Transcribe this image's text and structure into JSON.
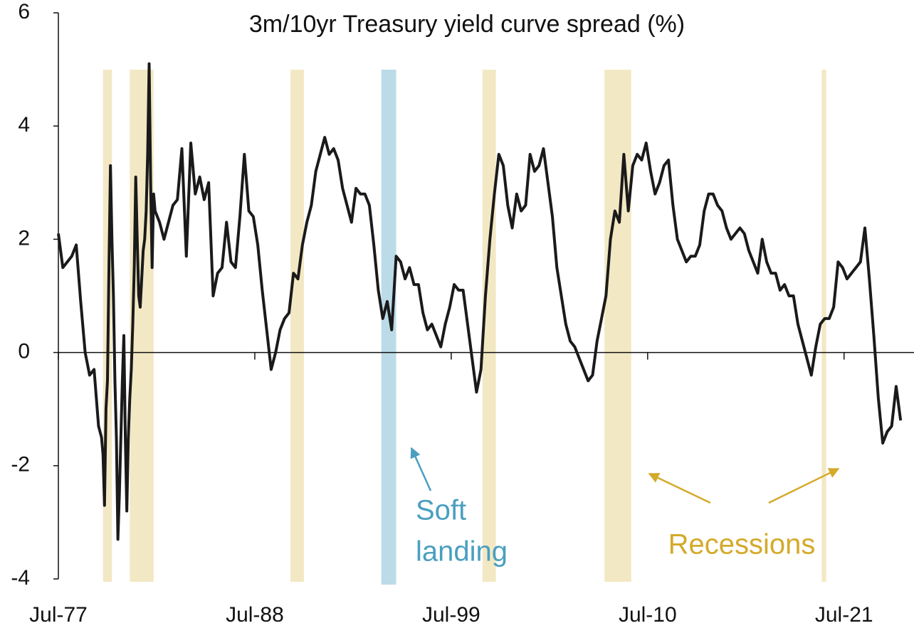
{
  "chart_data": {
    "type": "line",
    "title": "3m/10yr Treasury yield curve spread (%)",
    "x": [
      "1977-07",
      "1977-10",
      "1978-01",
      "1978-04",
      "1978-07",
      "1978-10",
      "1979-01",
      "1979-04",
      "1979-07",
      "1979-10",
      "1979-12",
      "1980-01",
      "1980-02",
      "1980-03",
      "1980-04",
      "1980-05",
      "1980-06",
      "1980-07",
      "1980-08",
      "1980-09",
      "1980-10",
      "1980-11",
      "1980-12",
      "1981-01",
      "1981-02",
      "1981-03",
      "1981-04",
      "1981-05",
      "1981-06",
      "1981-07",
      "1981-08",
      "1981-09",
      "1981-10",
      "1981-11",
      "1981-12",
      "1982-01",
      "1982-02",
      "1982-03",
      "1982-04",
      "1982-05",
      "1982-06",
      "1982-07",
      "1982-08",
      "1982-09",
      "1982-10",
      "1982-11",
      "1982-12",
      "1983-03",
      "1983-06",
      "1983-09",
      "1983-12",
      "1984-03",
      "1984-06",
      "1984-09",
      "1984-12",
      "1985-03",
      "1985-06",
      "1985-09",
      "1985-12",
      "1986-03",
      "1986-06",
      "1986-09",
      "1986-12",
      "1987-03",
      "1987-06",
      "1987-09",
      "1987-12",
      "1988-03",
      "1988-06",
      "1988-09",
      "1988-12",
      "1989-03",
      "1989-06",
      "1989-09",
      "1989-12",
      "1990-03",
      "1990-06",
      "1990-09",
      "1990-12",
      "1991-03",
      "1991-06",
      "1991-09",
      "1991-12",
      "1992-03",
      "1992-06",
      "1992-09",
      "1992-12",
      "1993-03",
      "1993-06",
      "1993-09",
      "1993-12",
      "1994-03",
      "1994-06",
      "1994-09",
      "1994-12",
      "1995-03",
      "1995-06",
      "1995-09",
      "1995-12",
      "1996-03",
      "1996-06",
      "1996-09",
      "1996-12",
      "1997-03",
      "1997-06",
      "1997-09",
      "1997-12",
      "1998-03",
      "1998-06",
      "1998-09",
      "1998-12",
      "1999-03",
      "1999-06",
      "1999-09",
      "1999-12",
      "2000-03",
      "2000-06",
      "2000-09",
      "2000-12",
      "2001-03",
      "2001-06",
      "2001-09",
      "2001-12",
      "2002-03",
      "2002-06",
      "2002-09",
      "2002-12",
      "2003-03",
      "2003-06",
      "2003-09",
      "2003-12",
      "2004-03",
      "2004-06",
      "2004-09",
      "2004-12",
      "2005-03",
      "2005-06",
      "2005-09",
      "2005-12",
      "2006-03",
      "2006-06",
      "2006-09",
      "2006-12",
      "2007-03",
      "2007-06",
      "2007-09",
      "2007-12",
      "2008-03",
      "2008-06",
      "2008-09",
      "2008-12",
      "2009-03",
      "2009-06",
      "2009-09",
      "2009-12",
      "2010-03",
      "2010-06",
      "2010-09",
      "2010-12",
      "2011-03",
      "2011-06",
      "2011-09",
      "2011-12",
      "2012-03",
      "2012-06",
      "2012-09",
      "2012-12",
      "2013-03",
      "2013-06",
      "2013-09",
      "2013-12",
      "2014-03",
      "2014-06",
      "2014-09",
      "2014-12",
      "2015-03",
      "2015-06",
      "2015-09",
      "2015-12",
      "2016-03",
      "2016-06",
      "2016-09",
      "2016-12",
      "2017-03",
      "2017-06",
      "2017-09",
      "2017-12",
      "2018-03",
      "2018-06",
      "2018-09",
      "2018-12",
      "2019-03",
      "2019-06",
      "2019-09",
      "2019-12",
      "2020-03",
      "2020-06",
      "2020-09",
      "2020-12",
      "2021-03",
      "2021-06",
      "2021-09",
      "2021-12",
      "2022-03",
      "2022-06",
      "2022-09",
      "2022-12",
      "2023-03",
      "2023-06",
      "2023-09",
      "2023-12",
      "2024-03",
      "2024-06",
      "2024-09"
    ],
    "series": [
      {
        "color": "#1a1a1a",
        "values": [
          2.1,
          1.5,
          1.6,
          1.7,
          1.9,
          0.9,
          0.0,
          -0.4,
          -0.3,
          -1.3,
          -1.5,
          -1.8,
          -2.7,
          -1.0,
          -0.5,
          1.5,
          3.3,
          2.0,
          1.0,
          -0.5,
          -1.5,
          -3.3,
          -2.5,
          -1.5,
          -0.5,
          0.3,
          -1.5,
          -2.8,
          -1.5,
          -0.8,
          -0.3,
          0.5,
          1.5,
          3.1,
          2.0,
          1.0,
          0.8,
          1.3,
          1.8,
          2.0,
          2.5,
          3.5,
          5.1,
          3.0,
          1.5,
          2.8,
          2.5,
          2.3,
          2.0,
          2.3,
          2.6,
          2.7,
          3.6,
          1.7,
          3.7,
          2.8,
          3.1,
          2.7,
          3.0,
          1.0,
          1.4,
          1.5,
          2.3,
          1.6,
          1.5,
          2.4,
          3.5,
          2.5,
          2.4,
          1.9,
          1.1,
          0.4,
          -0.3,
          0.0,
          0.4,
          0.6,
          0.7,
          1.4,
          1.3,
          1.9,
          2.3,
          2.6,
          3.2,
          3.5,
          3.8,
          3.5,
          3.6,
          3.4,
          2.9,
          2.6,
          2.3,
          2.9,
          2.8,
          2.8,
          2.6,
          1.9,
          1.1,
          0.6,
          0.9,
          0.4,
          1.7,
          1.6,
          1.3,
          1.5,
          1.2,
          1.2,
          0.7,
          0.4,
          0.5,
          0.3,
          0.1,
          0.5,
          0.8,
          1.2,
          1.1,
          1.1,
          0.5,
          -0.1,
          -0.7,
          -0.3,
          1.0,
          2.0,
          2.8,
          3.5,
          3.3,
          2.6,
          2.2,
          2.8,
          2.5,
          2.6,
          3.5,
          3.2,
          3.3,
          3.6,
          3.0,
          2.4,
          1.5,
          1.0,
          0.5,
          0.2,
          0.1,
          -0.1,
          -0.3,
          -0.5,
          -0.4,
          0.2,
          0.6,
          1.0,
          2.0,
          2.5,
          2.3,
          3.5,
          2.5,
          3.3,
          3.5,
          3.4,
          3.7,
          3.2,
          2.8,
          3.0,
          3.3,
          3.4,
          2.6,
          2.0,
          1.8,
          1.6,
          1.7,
          1.7,
          1.9,
          2.5,
          2.8,
          2.8,
          2.6,
          2.5,
          2.2,
          2.0,
          2.1,
          2.2,
          2.1,
          1.8,
          1.6,
          1.4,
          2.0,
          1.6,
          1.4,
          1.4,
          1.1,
          1.2,
          1.0,
          1.0,
          0.5,
          0.2,
          -0.1,
          -0.4,
          0.1,
          0.5,
          0.6,
          0.6,
          0.8,
          1.6,
          1.5,
          1.3,
          1.4,
          1.5,
          1.6,
          2.2,
          1.3,
          0.3,
          -0.8,
          -1.6,
          -1.4,
          -1.3,
          -0.6,
          -1.2
        ]
      }
    ],
    "xlim": [
      "1977-07",
      "2025-06"
    ],
    "xticks": [
      {
        "value": "1977-07",
        "label": "Jul-77"
      },
      {
        "value": "1988-07",
        "label": "Jul-88"
      },
      {
        "value": "1999-07",
        "label": "Jul-99"
      },
      {
        "value": "2010-07",
        "label": "Jul-10"
      },
      {
        "value": "2021-07",
        "label": "Jul-21"
      }
    ],
    "ylim": [
      -4,
      6
    ],
    "yticks": [
      -4,
      -2,
      0,
      2,
      4,
      6
    ],
    "recessions": {
      "label": "Recessions",
      "color": "#f3e8c4",
      "text_color": "#d4aa2a",
      "periods": [
        [
          "1980-01",
          "1980-07"
        ],
        [
          "1981-07",
          "1982-11"
        ],
        [
          "1990-07",
          "1991-04"
        ],
        [
          "2001-04",
          "2002-01"
        ],
        [
          "2008-02",
          "2009-08"
        ],
        [
          "2020-04",
          "2020-07"
        ]
      ]
    },
    "soft_landing": {
      "label": [
        "Soft",
        "landing"
      ],
      "color": "#bcdbe8",
      "text_color": "#4a9fc0",
      "period": [
        "1995-08",
        "1996-06"
      ]
    }
  }
}
